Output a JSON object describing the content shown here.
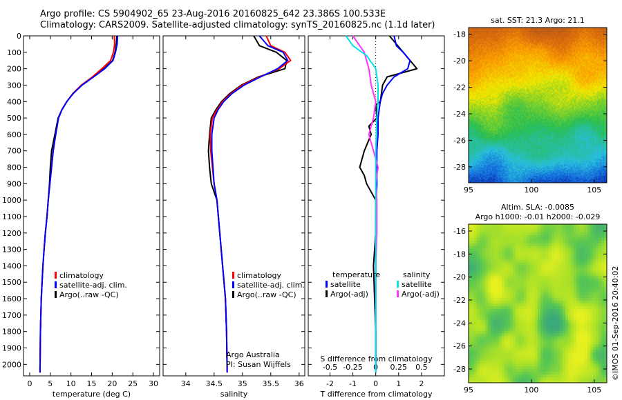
{
  "header": {
    "line1": "Argo profile: CS 5904902_65 23-Aug-2016 20160825_642 23.386S 100.533E",
    "line2": "Climatology: CARS2009. Satellite-adjusted climatology: synTS_20160825.nc (1.1d later)"
  },
  "colors": {
    "climatology": "#ff0000",
    "satellite": "#0000ff",
    "argo": "#000000",
    "sal_satellite": "#00e5e5",
    "sal_argo": "#ff33ff"
  },
  "depth_axis": {
    "ticks": [
      0,
      100,
      200,
      300,
      400,
      500,
      600,
      700,
      800,
      900,
      1000,
      1100,
      1200,
      1300,
      1400,
      1500,
      1600,
      1700,
      1800,
      1900,
      2000
    ],
    "range": [
      0,
      2070
    ]
  },
  "chart_data": [
    {
      "id": "temperature",
      "type": "line",
      "xlabel": "temperature (deg C)",
      "xticks": [
        0,
        5,
        10,
        15,
        20,
        25,
        30
      ],
      "xlim": [
        -1.5,
        31.5
      ],
      "ylim": [
        2070,
        0
      ],
      "legend": [
        "climatology",
        "satellite-adj. clim.",
        "Argo(..raw -QC)"
      ],
      "series": [
        {
          "name": "climatology",
          "x": [
            20.5,
            20.6,
            20.3,
            19.6,
            17.5,
            15.2,
            12.5,
            10.5,
            9.0,
            7.8,
            7.0,
            6.3,
            5.7,
            5.3,
            4.9,
            4.5,
            4.2,
            3.8,
            3.5,
            3.2,
            2.8,
            2.6,
            2.5
          ],
          "y": [
            0,
            50,
            100,
            150,
            200,
            250,
            300,
            350,
            400,
            450,
            500,
            600,
            700,
            800,
            900,
            1000,
            1100,
            1200,
            1300,
            1400,
            1600,
            1800,
            2050
          ]
        },
        {
          "name": "satellite-adj. clim.",
          "x": [
            21.3,
            21.2,
            20.8,
            20.2,
            18.2,
            15.5,
            12.7,
            10.6,
            9.0,
            7.8,
            7.0,
            6.3,
            5.7,
            5.3,
            4.9,
            4.5,
            4.2,
            3.8,
            3.5,
            3.2,
            2.8,
            2.6,
            2.5
          ],
          "y": [
            0,
            50,
            100,
            150,
            200,
            250,
            300,
            350,
            400,
            450,
            500,
            600,
            700,
            800,
            900,
            1000,
            1100,
            1200,
            1300,
            1400,
            1600,
            1800,
            2050
          ]
        },
        {
          "name": "Argo(..raw -QC)",
          "x": [
            21.1,
            21.0,
            20.7,
            20.1,
            18.0,
            15.4,
            12.6,
            10.5,
            9.0,
            7.8,
            6.9,
            6.1,
            5.3,
            5.0,
            4.8,
            4.5,
            4.2,
            3.8,
            3.5,
            3.2,
            2.8,
            2.6,
            2.5
          ],
          "y": [
            0,
            50,
            100,
            150,
            200,
            250,
            300,
            350,
            400,
            450,
            500,
            600,
            700,
            800,
            900,
            1000,
            1100,
            1200,
            1300,
            1400,
            1600,
            1800,
            2030
          ]
        }
      ]
    },
    {
      "id": "salinity",
      "type": "line",
      "xlabel": "salinity",
      "xticks": [
        34,
        34.5,
        35,
        35.5,
        36
      ],
      "xlim": [
        33.6,
        36.1
      ],
      "ylim": [
        2070,
        0
      ],
      "legend": [
        "climatology",
        "satellite-adj. clim.",
        "Argo(..raw -QC)"
      ],
      "annotation": [
        "Argo Australia",
        "PI: Susan Wijffels"
      ],
      "series": [
        {
          "name": "climatology",
          "x": [
            35.42,
            35.5,
            35.75,
            35.85,
            35.65,
            35.3,
            35.0,
            34.8,
            34.65,
            34.55,
            34.47,
            34.43,
            34.44,
            34.47,
            34.5,
            34.55,
            34.6,
            34.65,
            34.7,
            34.72,
            34.73
          ],
          "y": [
            0,
            60,
            100,
            150,
            200,
            250,
            300,
            350,
            400,
            450,
            500,
            600,
            700,
            800,
            900,
            1000,
            1200,
            1400,
            1600,
            1800,
            2050
          ]
        },
        {
          "name": "satellite-adj. clim.",
          "x": [
            35.3,
            35.45,
            35.72,
            35.8,
            35.62,
            35.32,
            35.03,
            34.82,
            34.67,
            34.57,
            34.5,
            34.46,
            34.46,
            34.48,
            34.5,
            34.55,
            34.6,
            34.65,
            34.7,
            34.72,
            34.73
          ],
          "y": [
            0,
            60,
            100,
            150,
            200,
            250,
            300,
            350,
            400,
            450,
            500,
            600,
            700,
            800,
            900,
            1000,
            1200,
            1400,
            1600,
            1800,
            2050
          ]
        },
        {
          "name": "Argo(..raw -QC)",
          "x": [
            35.2,
            35.3,
            35.6,
            35.78,
            35.75,
            35.28,
            34.98,
            34.78,
            34.63,
            34.53,
            34.45,
            34.42,
            34.4,
            34.42,
            34.45,
            34.55,
            34.6,
            34.65,
            34.7,
            34.72,
            34.73
          ],
          "y": [
            0,
            60,
            100,
            150,
            200,
            250,
            300,
            350,
            400,
            450,
            500,
            600,
            700,
            800,
            900,
            1000,
            1200,
            1400,
            1600,
            1800,
            2030
          ]
        }
      ]
    },
    {
      "id": "differences",
      "type": "line",
      "xlabel": "T difference from climatology",
      "xticks": [
        -2,
        -1,
        0,
        1,
        2
      ],
      "xlim": [
        -2.95,
        3.0
      ],
      "top_label": "S difference from climatology",
      "top_ticks": [
        "-0.5",
        "-0.25",
        "0",
        "0.25",
        "0.5"
      ],
      "top_tick_values": [
        -0.5,
        -0.25,
        0,
        0.25,
        0.5
      ],
      "ylim": [
        2070,
        0
      ],
      "legend_titles": [
        "temperature",
        "salinity"
      ],
      "legend": [
        "satellite",
        "Argo(-adj)",
        "satellite",
        "Argo(-adj)"
      ],
      "series": [
        {
          "name": "temperature satellite",
          "x": [
            0.8,
            0.9,
            1.2,
            1.5,
            1.4,
            0.8,
            0.5,
            0.3,
            0.2,
            0.15,
            0.1,
            0.1,
            0.05,
            0.05,
            0.0,
            0.0,
            0.0,
            0.0
          ],
          "y": [
            0,
            60,
            100,
            150,
            200,
            250,
            300,
            350,
            400,
            450,
            500,
            600,
            700,
            900,
            1100,
            1400,
            1700,
            2050
          ]
        },
        {
          "name": "temperature Argo(-adj)",
          "x": [
            0.6,
            0.9,
            1.2,
            1.8,
            0.5,
            0.3,
            0.2,
            0.0,
            0.05,
            -0.3,
            -0.2,
            -0.5,
            -0.7,
            -0.5,
            -0.4,
            0.0,
            0.0,
            -0.1,
            -0.05,
            0.0,
            0.0
          ],
          "y": [
            0,
            50,
            100,
            200,
            250,
            300,
            400,
            420,
            500,
            550,
            600,
            700,
            800,
            850,
            900,
            1000,
            1200,
            1400,
            1600,
            1800,
            2000
          ]
        },
        {
          "name": "salinity satellite",
          "x": [
            -1.3,
            -1.0,
            -0.4,
            0.0,
            0.1,
            0.1,
            0.05,
            0.0,
            0.0,
            0.0
          ],
          "y": [
            0,
            60,
            120,
            200,
            300,
            400,
            500,
            700,
            1000,
            2050
          ]
        },
        {
          "name": "salinity Argo(-adj)",
          "x": [
            -1.0,
            -0.5,
            -0.3,
            -0.2,
            0.0,
            -0.1,
            -0.3,
            -0.1,
            0.1,
            0.0,
            0.05,
            0.05,
            0.0,
            0.0
          ],
          "y": [
            0,
            100,
            200,
            300,
            400,
            500,
            600,
            700,
            800,
            900,
            1000,
            1200,
            1400,
            1600
          ]
        }
      ]
    },
    {
      "id": "sst-map",
      "type": "heatmap",
      "title": "sat. SST: 21.3 Argo: 21.1",
      "xticks": [
        95,
        100,
        105
      ],
      "yticks": [
        -18,
        -20,
        -22,
        -24,
        -26,
        -28
      ],
      "xlim": [
        95,
        106
      ],
      "ylim": [
        -29.2,
        -17.5
      ]
    },
    {
      "id": "sla-map",
      "type": "heatmap",
      "title": [
        "Altim. SLA: -0.0085",
        "Argo h1000: -0.01 h2000: -0.029"
      ],
      "xticks": [
        95,
        100,
        105
      ],
      "yticks": [
        -16,
        -18,
        -20,
        -22,
        -24,
        -26,
        -28
      ],
      "xlim": [
        95,
        106
      ],
      "ylim": [
        -29.2,
        -15.4
      ]
    }
  ],
  "footer": {
    "credit": "©IMOS 01-Sep-2016 20:40:02"
  }
}
